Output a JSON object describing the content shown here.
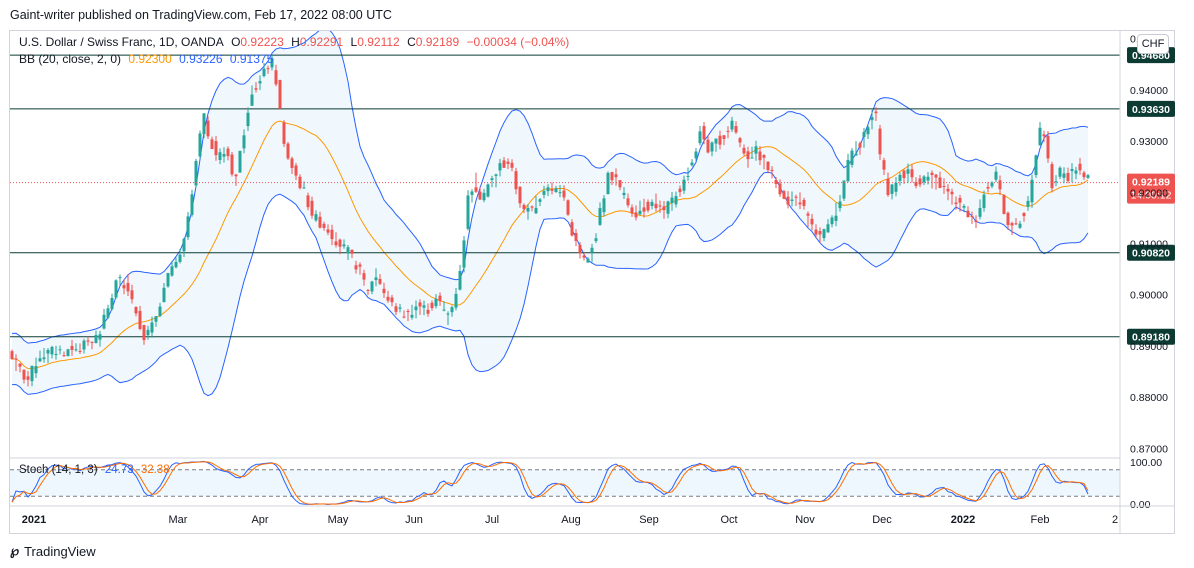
{
  "header": {
    "publish_line": "Gaint-writer published on TradingView.com, Feb 17, 2022 08:00 UTC"
  },
  "legend": {
    "symbol": "U.S. Dollar / Swiss Franc, 1D, OANDA",
    "open_label": "O",
    "open": "0.92223",
    "high_label": "H",
    "high": "0.92291",
    "low_label": "L",
    "low": "0.92112",
    "close_label": "C",
    "close": "0.92189",
    "change": "−0.00034 (−0.04%)",
    "bb_label": "BB (20, close, 2, 0)",
    "bb_basis": "0.92300",
    "bb_upper": "0.93226",
    "bb_lower": "0.91375"
  },
  "currency_button": "CHF",
  "stoch": {
    "label": "Stoch (14, 1, 3)",
    "k": "24.73",
    "d": "32.38"
  },
  "colors": {
    "up": "#26a69a",
    "down": "#ef5350",
    "basis": "#ff9800",
    "band": "#2962ff",
    "k_line": "#2962ff",
    "d_line": "#ff6d00",
    "level_line": "#0b3b33"
  },
  "footer": {
    "brand": "TradingView"
  },
  "chart_data": {
    "type": "candlestick",
    "instrument": "USD/CHF",
    "timeframe": "1D",
    "current_price": "0.92189",
    "countdown": "14:00:12",
    "y_ticks": [
      "0.95000",
      "0.94000",
      "0.93000",
      "0.92000",
      "0.91000",
      "0.90000",
      "0.89000",
      "0.88000",
      "0.87000"
    ],
    "ylim": [
      0.8685,
      0.9515
    ],
    "x_ticks": [
      "2021",
      "Mar",
      "Apr",
      "May",
      "Jun",
      "Jul",
      "Aug",
      "Sep",
      "Oct",
      "Nov",
      "Dec",
      "2022",
      "Feb",
      "2"
    ],
    "horizontal_levels": [
      {
        "value": 0.9468,
        "label": "0.94680"
      },
      {
        "value": 0.9363,
        "label": "0.93630"
      },
      {
        "value": 0.9082,
        "label": "0.90820"
      },
      {
        "value": 0.8918,
        "label": "0.89180"
      }
    ],
    "close_path": [
      [
        0,
        0.889
      ],
      [
        18,
        0.883
      ],
      [
        30,
        0.888
      ],
      [
        45,
        0.889
      ],
      [
        60,
        0.889
      ],
      [
        75,
        0.89
      ],
      [
        90,
        0.892
      ],
      [
        100,
        0.898
      ],
      [
        108,
        0.903
      ],
      [
        118,
        0.902
      ],
      [
        125,
        0.898
      ],
      [
        135,
        0.892
      ],
      [
        142,
        0.893
      ],
      [
        150,
        0.898
      ],
      [
        158,
        0.903
      ],
      [
        167,
        0.906
      ],
      [
        175,
        0.91
      ],
      [
        182,
        0.918
      ],
      [
        188,
        0.927
      ],
      [
        194,
        0.935
      ],
      [
        200,
        0.931
      ],
      [
        208,
        0.927
      ],
      [
        218,
        0.928
      ],
      [
        226,
        0.922
      ],
      [
        235,
        0.932
      ],
      [
        242,
        0.94
      ],
      [
        250,
        0.941
      ],
      [
        257,
        0.944
      ],
      [
        262,
        0.946
      ],
      [
        268,
        0.941
      ],
      [
        275,
        0.929
      ],
      [
        285,
        0.924
      ],
      [
        295,
        0.92
      ],
      [
        305,
        0.915
      ],
      [
        318,
        0.913
      ],
      [
        330,
        0.91
      ],
      [
        340,
        0.908
      ],
      [
        350,
        0.905
      ],
      [
        358,
        0.901
      ],
      [
        368,
        0.904
      ],
      [
        378,
        0.899
      ],
      [
        388,
        0.897
      ],
      [
        398,
        0.896
      ],
      [
        408,
        0.898
      ],
      [
        418,
        0.897
      ],
      [
        428,
        0.899
      ],
      [
        438,
        0.896
      ],
      [
        445,
        0.899
      ],
      [
        452,
        0.905
      ],
      [
        458,
        0.918
      ],
      [
        465,
        0.922
      ],
      [
        472,
        0.919
      ],
      [
        482,
        0.922
      ],
      [
        490,
        0.925
      ],
      [
        500,
        0.926
      ],
      [
        507,
        0.921
      ],
      [
        515,
        0.916
      ],
      [
        525,
        0.917
      ],
      [
        535,
        0.921
      ],
      [
        545,
        0.921
      ],
      [
        555,
        0.919
      ],
      [
        562,
        0.913
      ],
      [
        570,
        0.908
      ],
      [
        578,
        0.906
      ],
      [
        585,
        0.91
      ],
      [
        592,
        0.917
      ],
      [
        600,
        0.924
      ],
      [
        608,
        0.922
      ],
      [
        615,
        0.919
      ],
      [
        625,
        0.916
      ],
      [
        635,
        0.917
      ],
      [
        645,
        0.918
      ],
      [
        655,
        0.916
      ],
      [
        665,
        0.919
      ],
      [
        675,
        0.922
      ],
      [
        685,
        0.927
      ],
      [
        692,
        0.932
      ],
      [
        700,
        0.928
      ],
      [
        708,
        0.93
      ],
      [
        716,
        0.931
      ],
      [
        723,
        0.934
      ],
      [
        730,
        0.93
      ],
      [
        738,
        0.927
      ],
      [
        748,
        0.928
      ],
      [
        758,
        0.925
      ],
      [
        770,
        0.921
      ],
      [
        780,
        0.918
      ],
      [
        790,
        0.919
      ],
      [
        800,
        0.914
      ],
      [
        810,
        0.911
      ],
      [
        820,
        0.913
      ],
      [
        828,
        0.917
      ],
      [
        835,
        0.922
      ],
      [
        842,
        0.928
      ],
      [
        850,
        0.929
      ],
      [
        858,
        0.932
      ],
      [
        866,
        0.936
      ],
      [
        872,
        0.927
      ],
      [
        880,
        0.919
      ],
      [
        888,
        0.923
      ],
      [
        898,
        0.924
      ],
      [
        908,
        0.922
      ],
      [
        918,
        0.923
      ],
      [
        928,
        0.922
      ],
      [
        938,
        0.92
      ],
      [
        948,
        0.918
      ],
      [
        958,
        0.916
      ],
      [
        965,
        0.914
      ],
      [
        972,
        0.918
      ],
      [
        980,
        0.922
      ],
      [
        987,
        0.924
      ],
      [
        994,
        0.917
      ],
      [
        1000,
        0.913
      ],
      [
        1008,
        0.914
      ],
      [
        1015,
        0.916
      ],
      [
        1022,
        0.92
      ],
      [
        1030,
        0.932
      ],
      [
        1036,
        0.93
      ],
      [
        1043,
        0.921
      ],
      [
        1050,
        0.924
      ],
      [
        1058,
        0.923
      ],
      [
        1066,
        0.925
      ],
      [
        1074,
        0.923
      ],
      [
        1081,
        0.922
      ]
    ],
    "stochastic": {
      "k_last": 24.73,
      "d_last": 32.38,
      "levels": [
        80,
        20
      ],
      "y_ticks": [
        "100.00",
        "0.00"
      ]
    }
  }
}
